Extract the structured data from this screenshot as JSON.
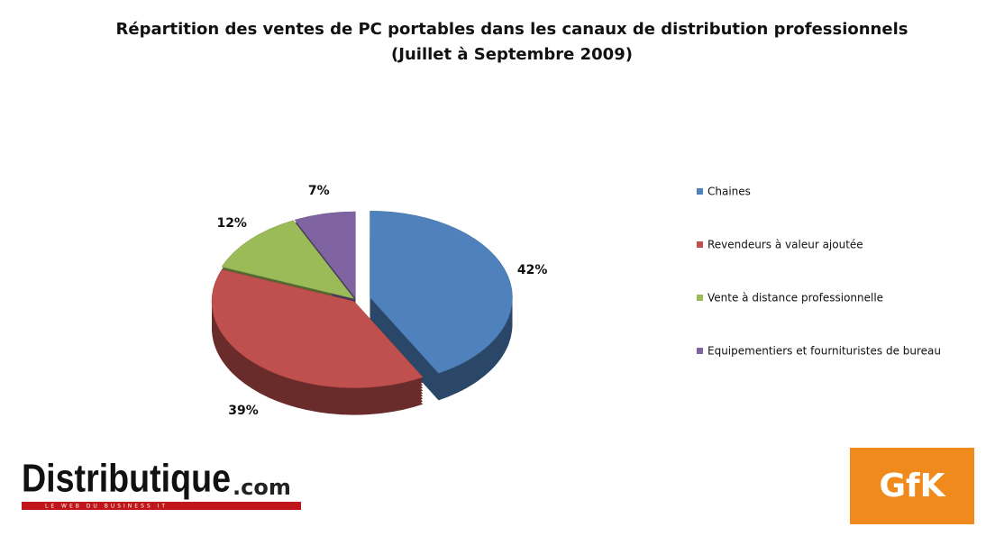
{
  "chart_data": {
    "type": "pie",
    "title": "Répartition des ventes de PC portables dans les canaux de distribution professionnels",
    "subtitle": "(Juillet à Septembre 2009)",
    "categories": [
      "Chaines",
      "Revendeurs à valeur ajoutée",
      "Vente à distance professionnelle",
      "Equipementiers et fournituristes de bureau"
    ],
    "values": [
      42,
      39,
      12,
      7
    ],
    "value_labels": [
      "42%",
      "39%",
      "12%",
      "7%"
    ],
    "colors": [
      "#4f81bd",
      "#c0504d",
      "#9bbb59",
      "#8064a2"
    ],
    "legend": "right"
  },
  "logos": {
    "distributique": "Distributique",
    "distributique_suffix": ".com",
    "distributique_tagline": "LE WEB DU BUSINESS IT",
    "gfk": "GfK"
  }
}
